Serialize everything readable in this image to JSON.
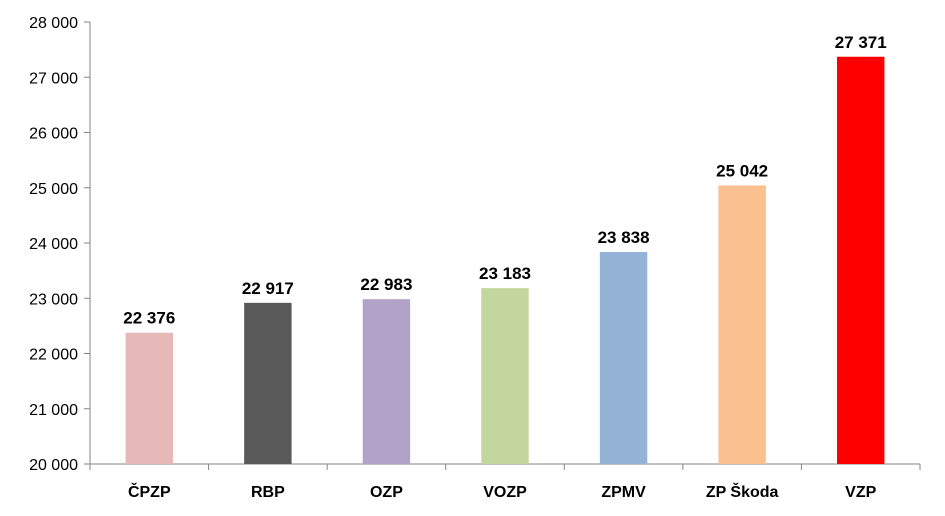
{
  "chart_data": {
    "type": "bar",
    "title": "",
    "xlabel": "",
    "ylabel": "",
    "categories": [
      "ČPZP",
      "RBP",
      "OZP",
      "VOZP",
      "ZPMV",
      "ZP Škoda",
      "VZP"
    ],
    "values": [
      22376,
      22917,
      22983,
      23183,
      23838,
      25042,
      27371
    ],
    "data_labels": [
      "22 376",
      "22 917",
      "22 983",
      "23 183",
      "23 838",
      "25 042",
      "27 371"
    ],
    "colors": [
      "#E6B9B8",
      "#595959",
      "#B3A2C7",
      "#C3D69B",
      "#95B3D7",
      "#FAC090",
      "#FF0000"
    ],
    "ylim": [
      20000,
      28000
    ],
    "y_ticks": [
      20000,
      21000,
      22000,
      23000,
      24000,
      25000,
      26000,
      27000,
      28000
    ],
    "y_tick_labels": [
      "20 000",
      "21 000",
      "22 000",
      "23 000",
      "24 000",
      "25 000",
      "26 000",
      "27 000",
      "28 000"
    ],
    "grid": false,
    "legend": "none"
  }
}
